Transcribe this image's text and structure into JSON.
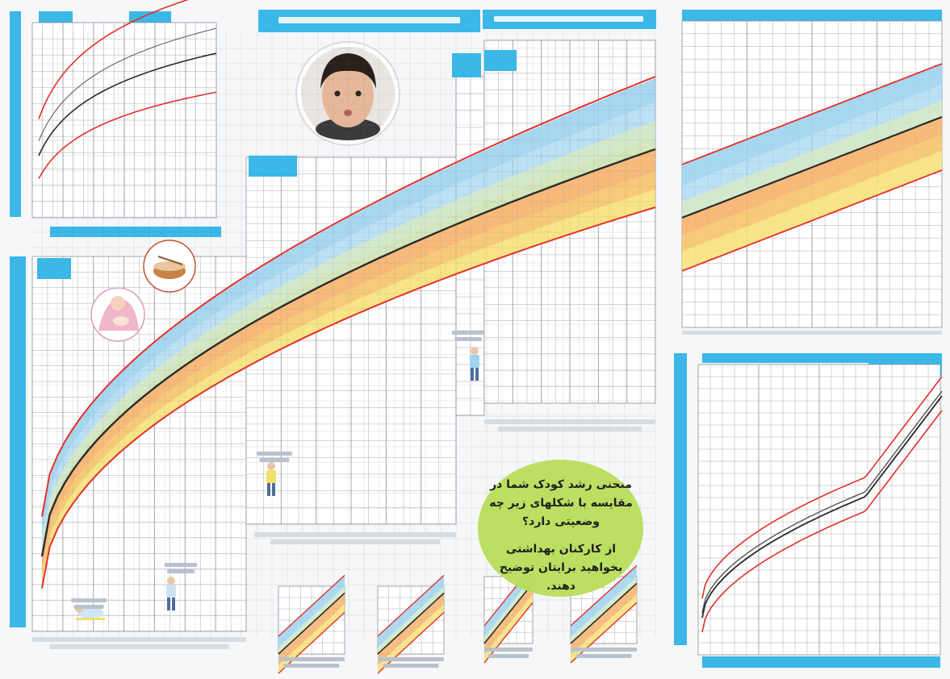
{
  "colors": {
    "cyan": "#3bb7e8",
    "cyan_light": "#9fdcf4",
    "grid": "#8a8f99",
    "red_curve": "#e2312b",
    "median_curve": "#2b2b2b",
    "band_blue": "#9fd3f0",
    "band_green": "#cfe7c7",
    "band_orange": "#f6b36c",
    "band_yellow": "#f7e27a",
    "callout": "#b8dd5a"
  },
  "callout": {
    "question": "منحنی رشد کودک شما در مقایسه با شکلهای زیر چه وضعیتی دارد؟",
    "advice": "از کارکنان بهداشتی بخواهید برایتان توضیح دهند."
  },
  "icons": {
    "photo": "child-photo",
    "bowl": "food-bowl-icon",
    "mother": "breastfeeding-mother-icon",
    "child1": "child-walking-icon",
    "child2": "child-standing-icon",
    "child3": "child-playing-icon",
    "child4": "toddler-sitting-icon",
    "child5": "baby-crawling-icon"
  }
}
